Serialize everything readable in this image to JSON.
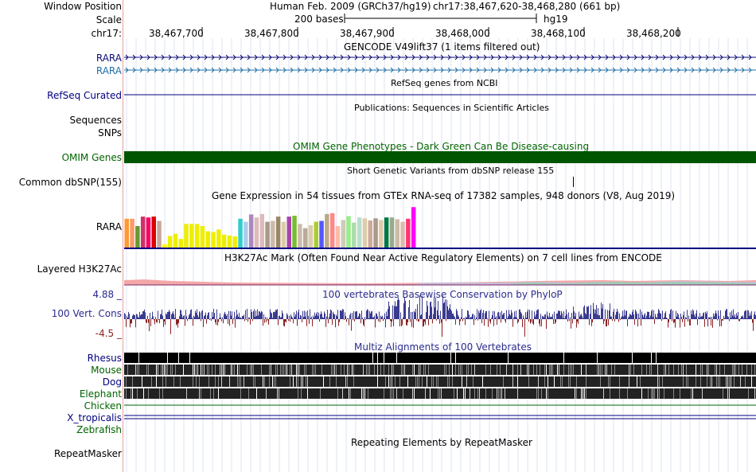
{
  "labels": {
    "window_position": "Window Position",
    "scale": "Scale",
    "chrom": "chr17:",
    "rara1": "RARA",
    "rara2": "RARA",
    "refseq": "RefSeq Curated",
    "sequences": "Sequences",
    "snps": "SNPs",
    "omim": "OMIM Genes",
    "dbsnp": "Common dbSNP(155)",
    "gtex_gene": "RARA",
    "h3k27ac": "Layered H3K27Ac",
    "cons_max": "4.88 _",
    "cons": "100 Vert. Cons",
    "cons_min": "-4.5 _",
    "rhesus": "Rhesus",
    "mouse": "Mouse",
    "dog": "Dog",
    "elephant": "Elephant",
    "chicken": "Chicken",
    "xtrop": "X_tropicalis",
    "zebrafish": "Zebrafish",
    "repeatmasker": "RepeatMasker"
  },
  "header": {
    "assembly": "Human Feb. 2009 (GRCh37/hg19)",
    "position": "chr17:38,467,620-38,468,280 (661 bp)",
    "scale_text": "200 bases",
    "scale_db": "hg19"
  },
  "ruler": {
    "ticks": [
      "38,467,700",
      "38,467,800",
      "38,467,900",
      "38,468,000",
      "38,468,100",
      "38,468,200"
    ]
  },
  "titles": {
    "gencode": "GENCODE V49lift37 (1 items filtered out)",
    "refseq": "RefSeq genes from NCBI",
    "publications": "Publications: Sequences in Scientific Articles",
    "omim": "OMIM Gene Phenotypes - Dark Green Can Be Disease-causing",
    "dbsnp": "Short Genetic Variants from dbSNP release 155",
    "gtex": "Gene Expression in 54 tissues from GTEx RNA-seq of 17382 samples, 948 donors (V8, Aug 2019)",
    "h3k27ac": "H3K27Ac Mark (Often Found Near Active Regulatory Elements) on 7 cell lines from ENCODE",
    "phylop": "100 vertebrates Basewise Conservation by PhyloP",
    "multiz": "Multiz Alignments of 100 Vertebrates",
    "repeatmasker": "Repeating Elements by RepeatMasker"
  },
  "colors": {
    "label_blue": "#000080",
    "label_green": "#006400",
    "omim_green": "#005500",
    "cons_pos": "#3b3b8f",
    "cons_neg": "#8a2222",
    "gencode": "#0c0c78",
    "rara2": "#1f6fa8"
  },
  "gtex": {
    "values": [
      0.67,
      0.67,
      0.5,
      0.72,
      0.7,
      0.72,
      0.62,
      0.08,
      0.27,
      0.32,
      0.2,
      0.55,
      0.55,
      0.55,
      0.5,
      0.38,
      0.36,
      0.42,
      0.3,
      0.28,
      0.26,
      0.67,
      0.6,
      0.77,
      0.7,
      0.78,
      0.6,
      0.62,
      0.72,
      0.6,
      0.72,
      0.74,
      0.55,
      0.45,
      0.52,
      0.6,
      0.62,
      0.78,
      0.8,
      0.5,
      0.64,
      0.73,
      0.58,
      0.7,
      0.68,
      0.63,
      0.68,
      0.64,
      0.7,
      0.7,
      0.66,
      0.6,
      0.67,
      0.94
    ],
    "colors": [
      "#ff9933",
      "#ff9966",
      "#669933",
      "#cc3366",
      "#ff0066",
      "#dd0000",
      "#c9a89a",
      "#ffff00",
      "#eeee00",
      "#eeee00",
      "#eeee00",
      "#eeee00",
      "#eeee00",
      "#eeee00",
      "#eeee00",
      "#eeee00",
      "#eeee00",
      "#eeee00",
      "#eeee00",
      "#eeee00",
      "#eeee00",
      "#33cccc",
      "#aaccee",
      "#aa88bb",
      "#ddbbbb",
      "#ddbbbb",
      "#aa9988",
      "#ccbbaa",
      "#998866",
      "#ddccaa",
      "#aa44aa",
      "#77bb33",
      "#ccbbaa",
      "#bbaa99",
      "#ddccaa",
      "#aacc33",
      "#5555ff",
      "#bbaa88",
      "#ff8888",
      "#ffbbaa",
      "#ccccbb",
      "#99ee88",
      "#aaddaa",
      "#bbddcc",
      "#ddccaa",
      "#ccaa99",
      "#aa9988",
      "#ddccaa",
      "#007744",
      "#99aa88",
      "#ccbbaa",
      "#ddbbaa",
      "#ff3377",
      "#ff00ff"
    ]
  }
}
